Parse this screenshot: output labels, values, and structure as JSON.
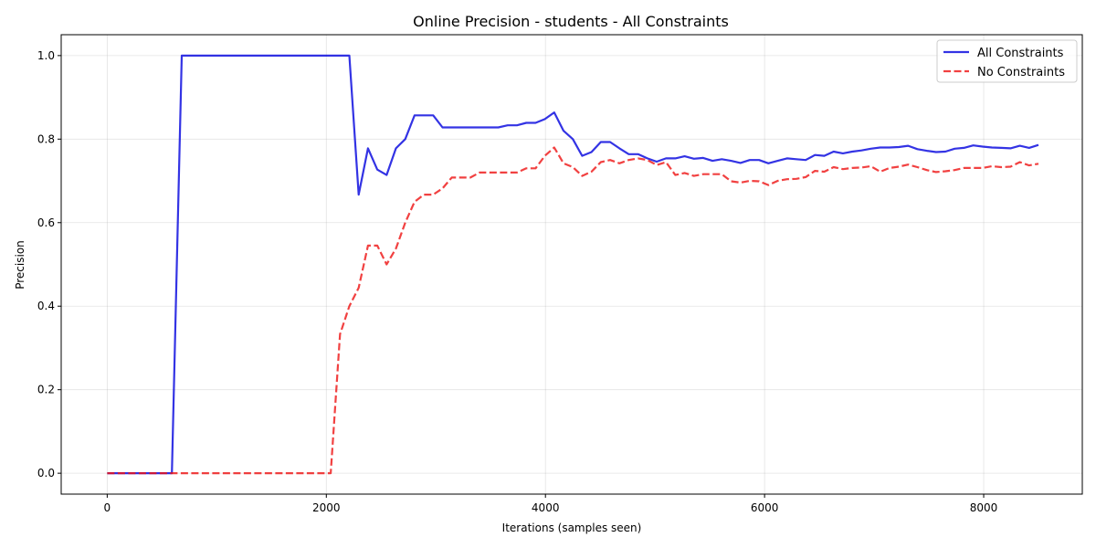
{
  "chart_data": {
    "type": "line",
    "title": "Online Precision - students - All Constraints",
    "xlabel": "Iterations (samples seen)",
    "ylabel": "Precision",
    "xlim": [
      -420,
      8900
    ],
    "ylim": [
      -0.05,
      1.05
    ],
    "xticks": [
      0,
      2000,
      4000,
      6000,
      8000
    ],
    "xtick_labels": [
      "0",
      "2000",
      "4000",
      "6000",
      "8000"
    ],
    "yticks": [
      0.0,
      0.2,
      0.4,
      0.6,
      0.8,
      1.0
    ],
    "ytick_labels": [
      "0.0",
      "0.2",
      "0.4",
      "0.6",
      "0.8",
      "1.0"
    ],
    "grid": true,
    "legend_position": "top-right",
    "series": [
      {
        "name": "All Constraints",
        "color": "#0000dd",
        "style": "solid",
        "points": [
          [
            0,
            0
          ],
          [
            590,
            0
          ],
          [
            680,
            1.0
          ],
          [
            2210,
            1.0
          ],
          [
            2295,
            0.667
          ],
          [
            2380,
            0.778
          ],
          [
            2465,
            0.727
          ],
          [
            2550,
            0.714
          ],
          [
            2635,
            0.778
          ],
          [
            2720,
            0.8
          ],
          [
            2805,
            0.857
          ],
          [
            2975,
            0.857
          ],
          [
            3060,
            0.828
          ],
          [
            3570,
            0.828
          ],
          [
            3655,
            0.833
          ],
          [
            3740,
            0.833
          ],
          [
            3825,
            0.839
          ],
          [
            3910,
            0.839
          ],
          [
            3995,
            0.848
          ],
          [
            4080,
            0.864
          ],
          [
            4165,
            0.82
          ],
          [
            4250,
            0.8
          ],
          [
            4335,
            0.76
          ],
          [
            4420,
            0.769
          ],
          [
            4505,
            0.793
          ],
          [
            4590,
            0.793
          ],
          [
            4675,
            0.778
          ],
          [
            4760,
            0.764
          ],
          [
            4845,
            0.764
          ],
          [
            4930,
            0.754
          ],
          [
            5015,
            0.746
          ],
          [
            5100,
            0.754
          ],
          [
            5185,
            0.754
          ],
          [
            5270,
            0.759
          ],
          [
            5355,
            0.753
          ],
          [
            5440,
            0.755
          ],
          [
            5525,
            0.748
          ],
          [
            5610,
            0.752
          ],
          [
            5695,
            0.748
          ],
          [
            5780,
            0.743
          ],
          [
            5865,
            0.75
          ],
          [
            5950,
            0.75
          ],
          [
            6035,
            0.742
          ],
          [
            6120,
            0.748
          ],
          [
            6205,
            0.754
          ],
          [
            6290,
            0.752
          ],
          [
            6375,
            0.75
          ],
          [
            6460,
            0.762
          ],
          [
            6545,
            0.76
          ],
          [
            6630,
            0.77
          ],
          [
            6715,
            0.766
          ],
          [
            6800,
            0.77
          ],
          [
            6885,
            0.773
          ],
          [
            6970,
            0.777
          ],
          [
            7055,
            0.78
          ],
          [
            7140,
            0.78
          ],
          [
            7225,
            0.781
          ],
          [
            7310,
            0.784
          ],
          [
            7395,
            0.776
          ],
          [
            7480,
            0.772
          ],
          [
            7565,
            0.769
          ],
          [
            7650,
            0.77
          ],
          [
            7735,
            0.777
          ],
          [
            7820,
            0.779
          ],
          [
            7905,
            0.785
          ],
          [
            7990,
            0.782
          ],
          [
            8075,
            0.78
          ],
          [
            8160,
            0.779
          ],
          [
            8245,
            0.778
          ],
          [
            8330,
            0.784
          ],
          [
            8415,
            0.779
          ],
          [
            8500,
            0.786
          ]
        ]
      },
      {
        "name": "No Constraints",
        "color": "#ee1111",
        "style": "dashed",
        "points": [
          [
            0,
            0
          ],
          [
            2040,
            0
          ],
          [
            2125,
            0.333
          ],
          [
            2210,
            0.4
          ],
          [
            2295,
            0.444
          ],
          [
            2380,
            0.545
          ],
          [
            2465,
            0.545
          ],
          [
            2550,
            0.5
          ],
          [
            2635,
            0.538
          ],
          [
            2720,
            0.6
          ],
          [
            2805,
            0.65
          ],
          [
            2890,
            0.667
          ],
          [
            2975,
            0.667
          ],
          [
            3060,
            0.682
          ],
          [
            3145,
            0.708
          ],
          [
            3230,
            0.708
          ],
          [
            3315,
            0.708
          ],
          [
            3400,
            0.72
          ],
          [
            3485,
            0.72
          ],
          [
            3570,
            0.72
          ],
          [
            3655,
            0.72
          ],
          [
            3740,
            0.72
          ],
          [
            3825,
            0.73
          ],
          [
            3910,
            0.73
          ],
          [
            3995,
            0.76
          ],
          [
            4080,
            0.78
          ],
          [
            4165,
            0.742
          ],
          [
            4250,
            0.733
          ],
          [
            4335,
            0.712
          ],
          [
            4420,
            0.722
          ],
          [
            4505,
            0.745
          ],
          [
            4590,
            0.75
          ],
          [
            4675,
            0.742
          ],
          [
            4760,
            0.75
          ],
          [
            4845,
            0.754
          ],
          [
            4930,
            0.75
          ],
          [
            5015,
            0.738
          ],
          [
            5100,
            0.745
          ],
          [
            5185,
            0.714
          ],
          [
            5270,
            0.719
          ],
          [
            5355,
            0.712
          ],
          [
            5440,
            0.716
          ],
          [
            5525,
            0.716
          ],
          [
            5610,
            0.716
          ],
          [
            5695,
            0.699
          ],
          [
            5780,
            0.696
          ],
          [
            5865,
            0.7
          ],
          [
            5950,
            0.699
          ],
          [
            6035,
            0.69
          ],
          [
            6120,
            0.7
          ],
          [
            6205,
            0.704
          ],
          [
            6290,
            0.705
          ],
          [
            6375,
            0.709
          ],
          [
            6460,
            0.724
          ],
          [
            6545,
            0.722
          ],
          [
            6630,
            0.733
          ],
          [
            6715,
            0.728
          ],
          [
            6800,
            0.731
          ],
          [
            6885,
            0.732
          ],
          [
            6970,
            0.735
          ],
          [
            7055,
            0.722
          ],
          [
            7140,
            0.731
          ],
          [
            7225,
            0.734
          ],
          [
            7310,
            0.739
          ],
          [
            7395,
            0.733
          ],
          [
            7480,
            0.726
          ],
          [
            7565,
            0.721
          ],
          [
            7650,
            0.723
          ],
          [
            7735,
            0.726
          ],
          [
            7820,
            0.731
          ],
          [
            7905,
            0.731
          ],
          [
            7990,
            0.731
          ],
          [
            8075,
            0.735
          ],
          [
            8160,
            0.733
          ],
          [
            8245,
            0.734
          ],
          [
            8330,
            0.745
          ],
          [
            8415,
            0.737
          ],
          [
            8500,
            0.741
          ]
        ]
      }
    ]
  }
}
